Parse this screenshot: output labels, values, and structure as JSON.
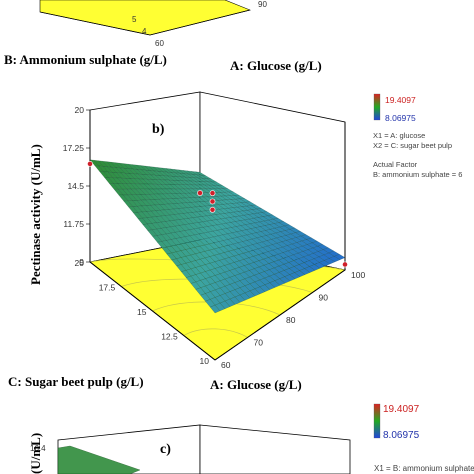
{
  "chart_data": [
    {
      "panel": "a",
      "type": "surface",
      "xlabel": "A: Glucose (g/L)",
      "ylabel": "B: Ammonium sulphate (g/L)",
      "x_ticks": [
        "90"
      ],
      "y_ticks": [
        "5",
        "4"
      ],
      "extra_ticks": [
        "60"
      ]
    },
    {
      "panel": "b",
      "type": "surface",
      "label": "b)",
      "xlabel": "A: Glucose (g/L)",
      "ylabel": "C: Sugar beet pulp (g/L)",
      "zlabel": "Pectinase activity (U/mL)",
      "x_ticks": [
        "60",
        "70",
        "80",
        "90",
        "100"
      ],
      "y_ticks": [
        "20",
        "17.5",
        "15",
        "12.5",
        "10"
      ],
      "z_ticks": [
        "20",
        "17.25",
        "14.5",
        "11.75",
        "9"
      ],
      "x_range": [
        60,
        100
      ],
      "y_range": [
        10,
        20
      ],
      "z_range": [
        9,
        20
      ],
      "surface_corners": [
        {
          "glucose": 60,
          "sugar_beet_pulp": 20,
          "pectinase": 16.4
        },
        {
          "glucose": 100,
          "sugar_beet_pulp": 20,
          "pectinase": 13.9
        },
        {
          "glucose": 100,
          "sugar_beet_pulp": 10,
          "pectinase": 9.9
        },
        {
          "glucose": 60,
          "sugar_beet_pulp": 10,
          "pectinase": 12.4
        }
      ],
      "design_points": [
        {
          "glucose": 60,
          "sugar_beet_pulp": 20,
          "pectinase": 16.1
        },
        {
          "glucose": 80,
          "sugar_beet_pulp": 15,
          "pectinase": 14.3
        },
        {
          "glucose": 80,
          "sugar_beet_pulp": 15,
          "pectinase": 14.9
        },
        {
          "glucose": 80,
          "sugar_beet_pulp": 15,
          "pectinase": 15.5
        },
        {
          "glucose": 100,
          "sugar_beet_pulp": 20,
          "pectinase": 12.4
        },
        {
          "glucose": 100,
          "sugar_beet_pulp": 10,
          "pectinase": 9.4
        }
      ],
      "legend": {
        "max": "19.4097",
        "min": "8.06975",
        "lines": [
          "X1 = A: glucose",
          "X2 = C: sugar beet pulp",
          "",
          "Actual Factor",
          "B: ammonium sulphate = 6"
        ]
      }
    },
    {
      "panel": "c",
      "type": "surface",
      "label": "c)",
      "zlabel": "(U/mL)",
      "z_ticks": [
        "16.4"
      ],
      "legend": {
        "max": "19.4097",
        "min": "8.06975",
        "lines": [
          "X1 = B: ammonium sulphate"
        ]
      }
    }
  ],
  "colors": {
    "surface_high": "#2e8b2e",
    "surface_mid": "#3fa0a0",
    "surface_low": "#1e64d2",
    "floor": "#ffff33",
    "legend_high": "#dd2222",
    "legend_low": "#2244dd",
    "legend_max_text": "#cc2222",
    "legend_min_text": "#2233aa"
  }
}
